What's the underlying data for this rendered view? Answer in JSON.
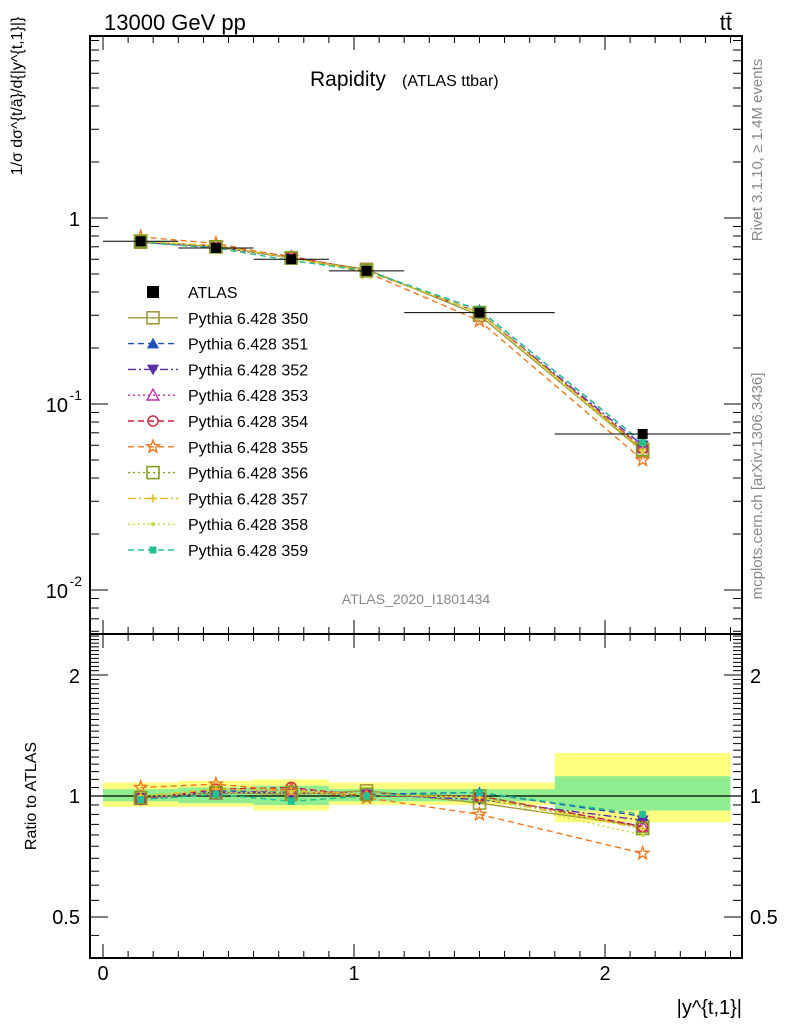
{
  "header": {
    "energy": "13000 GeV pp",
    "process": "tt̄"
  },
  "plot_title": {
    "main": "Rapidity",
    "sub": "(ATLAS ttbar)"
  },
  "analysis_id": "ATLAS_2020_I1801434",
  "side_label_top": "Rivet 3.1.10, ≥ 1.4M events",
  "side_label_bottom": "mcplots.cern.ch [arXiv:1306.3436]",
  "axes": {
    "y_main_label": "1/σ dσ^{t/ā}/d{|y^{t,1}|}",
    "y_main_ticks": [
      "1",
      "10",
      "-1",
      "10",
      "-2"
    ],
    "y_ratio_label": "Ratio to ATLAS",
    "y_ratio_ticks": [
      "2",
      "1",
      "0.5"
    ],
    "x_ticks": [
      "0",
      "1",
      "2"
    ],
    "x_label": "|y^{t,1}|"
  },
  "chart_data": [
    {
      "type": "scatter",
      "panel": "main",
      "y_scale": "log",
      "xlim": [
        -0.05,
        2.55
      ],
      "ylim": [
        0.006,
        5.5
      ],
      "x": [
        0.15,
        0.45,
        0.75,
        1.05,
        1.5,
        2.15
      ],
      "x_bins": [
        [
          0.0,
          0.3
        ],
        [
          0.3,
          0.6
        ],
        [
          0.6,
          0.9
        ],
        [
          0.9,
          1.2
        ],
        [
          1.2,
          1.8
        ],
        [
          1.8,
          2.5
        ]
      ],
      "series": [
        {
          "name": "ATLAS",
          "color": "#000000",
          "marker": "square-filled",
          "values": [
            0.75,
            0.69,
            0.6,
            0.52,
            0.31,
            0.069
          ]
        },
        {
          "name": "Pythia 6.428 350",
          "color": "#a09a3c",
          "marker": "square-open",
          "line": "solid",
          "values": [
            0.74,
            0.7,
            0.61,
            0.53,
            0.3,
            0.056
          ]
        },
        {
          "name": "Pythia 6.428 351",
          "color": "#1f4fbf",
          "marker": "triangle-up-filled",
          "line": "dashed",
          "values": [
            0.74,
            0.7,
            0.61,
            0.52,
            0.32,
            0.062
          ]
        },
        {
          "name": "Pythia 6.428 352",
          "color": "#5a2fa8",
          "marker": "triangle-down-filled",
          "line": "dashdot",
          "values": [
            0.74,
            0.7,
            0.61,
            0.52,
            0.31,
            0.06
          ]
        },
        {
          "name": "Pythia 6.428 353",
          "color": "#c02ca8",
          "marker": "triangle-up-open",
          "line": "dotted",
          "values": [
            0.74,
            0.69,
            0.62,
            0.52,
            0.31,
            0.058
          ]
        },
        {
          "name": "Pythia 6.428 354",
          "color": "#d0213a",
          "marker": "circle-open",
          "line": "dashed",
          "values": [
            0.74,
            0.71,
            0.62,
            0.52,
            0.31,
            0.058
          ]
        },
        {
          "name": "Pythia 6.428 355",
          "color": "#f07820",
          "marker": "star-open",
          "line": "dashed",
          "values": [
            0.79,
            0.73,
            0.61,
            0.51,
            0.28,
            0.05
          ]
        },
        {
          "name": "Pythia 6.428 356",
          "color": "#7f9f20",
          "marker": "square-open",
          "line": "dotted",
          "values": [
            0.75,
            0.7,
            0.61,
            0.52,
            0.31,
            0.057
          ]
        },
        {
          "name": "Pythia 6.428 357",
          "color": "#e0c020",
          "marker": "cross",
          "line": "dashdot",
          "values": [
            0.75,
            0.71,
            0.61,
            0.52,
            0.31,
            0.057
          ]
        },
        {
          "name": "Pythia 6.428 358",
          "color": "#c8d838",
          "marker": "dot",
          "line": "dotted",
          "values": [
            0.75,
            0.7,
            0.61,
            0.52,
            0.31,
            0.055
          ]
        },
        {
          "name": "Pythia 6.428 359",
          "color": "#20c090",
          "marker": "square-filled-small",
          "line": "dashed",
          "values": [
            0.74,
            0.69,
            0.59,
            0.52,
            0.32,
            0.062
          ]
        }
      ]
    },
    {
      "type": "scatter",
      "panel": "ratio",
      "y_scale": "log",
      "xlim": [
        -0.05,
        2.55
      ],
      "ylim": [
        0.43,
        2.5
      ],
      "reference": 1.0,
      "x": [
        0.15,
        0.45,
        0.75,
        1.05,
        1.5,
        2.15
      ],
      "x_bins": [
        [
          0.0,
          0.3
        ],
        [
          0.3,
          0.6
        ],
        [
          0.6,
          0.9
        ],
        [
          0.9,
          1.2
        ],
        [
          1.2,
          1.8
        ],
        [
          1.8,
          2.5
        ]
      ],
      "uncertainty_bands": {
        "inner": {
          "color": "#90ee90",
          "low": [
            0.97,
            0.96,
            0.95,
            0.97,
            0.97,
            0.92
          ],
          "high": [
            1.04,
            1.05,
            1.06,
            1.04,
            1.04,
            1.12
          ]
        },
        "outer": {
          "color": "#ffff80",
          "low": [
            0.94,
            0.94,
            0.92,
            0.95,
            0.95,
            0.86
          ],
          "high": [
            1.08,
            1.09,
            1.1,
            1.08,
            1.08,
            1.28
          ]
        }
      },
      "series": [
        {
          "name": "Pythia 6.428 350",
          "values": [
            0.99,
            1.02,
            1.01,
            1.03,
            0.96,
            0.84
          ]
        },
        {
          "name": "Pythia 6.428 351",
          "values": [
            0.99,
            1.03,
            1.02,
            1.01,
            1.02,
            0.89
          ]
        },
        {
          "name": "Pythia 6.428 352",
          "values": [
            0.99,
            1.02,
            1.02,
            1.01,
            0.98,
            0.87
          ]
        },
        {
          "name": "Pythia 6.428 353",
          "values": [
            0.98,
            1.01,
            1.04,
            1.01,
            1.0,
            0.84
          ]
        },
        {
          "name": "Pythia 6.428 354",
          "values": [
            0.98,
            1.04,
            1.05,
            1.0,
            1.0,
            0.84
          ]
        },
        {
          "name": "Pythia 6.428 355",
          "values": [
            1.05,
            1.07,
            1.03,
            0.99,
            0.9,
            0.72
          ]
        },
        {
          "name": "Pythia 6.428 356",
          "values": [
            0.99,
            1.02,
            1.02,
            1.01,
            1.0,
            0.83
          ]
        },
        {
          "name": "Pythia 6.428 357",
          "values": [
            1.0,
            1.04,
            1.03,
            1.01,
            0.99,
            0.83
          ]
        },
        {
          "name": "Pythia 6.428 358",
          "values": [
            1.0,
            1.02,
            1.02,
            1.01,
            0.99,
            0.8
          ]
        },
        {
          "name": "Pythia 6.428 359",
          "values": [
            0.98,
            1.01,
            0.97,
            1.0,
            1.02,
            0.9
          ]
        }
      ]
    }
  ]
}
